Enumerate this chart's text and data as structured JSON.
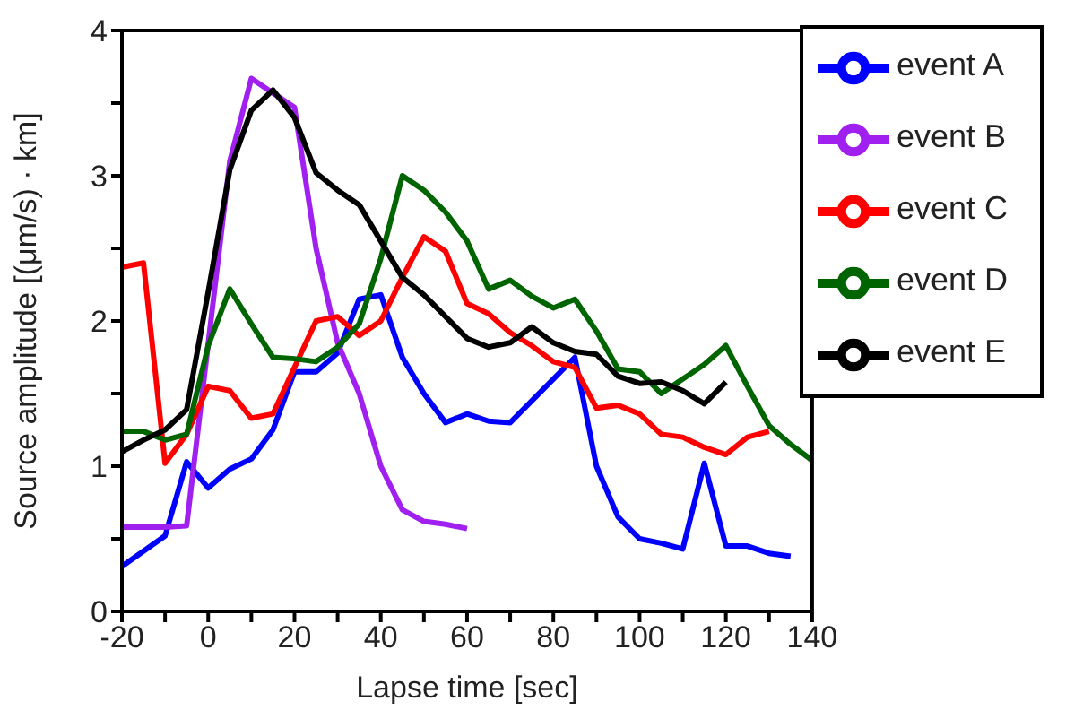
{
  "chart_data": {
    "type": "line",
    "xlabel": "Lapse time [sec]",
    "ylabel": "Source amplitude [(μm/s) · km]",
    "xlim": [
      -20,
      140
    ],
    "ylim": [
      0,
      4
    ],
    "xticks": [
      -20,
      {
        "value": -10,
        "label": null
      },
      0,
      {
        "value": 10,
        "label": null
      },
      20,
      {
        "value": 30,
        "label": null
      },
      40,
      {
        "value": 50,
        "label": null
      },
      60,
      {
        "value": 70,
        "label": null
      },
      80,
      {
        "value": 90,
        "label": null
      },
      100,
      {
        "value": 110,
        "label": null
      },
      120,
      {
        "value": 130,
        "label": null
      },
      140
    ],
    "yticks": [
      0,
      {
        "value": 0.5,
        "label": null
      },
      1,
      {
        "value": 1.5,
        "label": null
      },
      2,
      {
        "value": 2.5,
        "label": null
      },
      3,
      {
        "value": 3.5,
        "label": null
      },
      4
    ],
    "grid": false,
    "legend": "top right",
    "marker": "none",
    "line_style": "solid",
    "series": [
      {
        "name": "event A",
        "color": "#0000ff",
        "x": [
          -20,
          -10,
          -5,
          0,
          5,
          10,
          15,
          20,
          25,
          30,
          35,
          40,
          45,
          50,
          55,
          60,
          65,
          70,
          75,
          80,
          85,
          90,
          95,
          100,
          105,
          110,
          115,
          120,
          125,
          130,
          135
        ],
        "values": [
          0.31,
          0.52,
          1.03,
          0.85,
          0.98,
          1.05,
          1.25,
          1.65,
          1.65,
          1.78,
          2.15,
          2.18,
          1.75,
          1.5,
          1.3,
          1.36,
          1.31,
          1.3,
          1.45,
          1.6,
          1.75,
          1.0,
          0.65,
          0.5,
          0.47,
          0.43,
          1.02,
          0.45,
          0.45,
          0.4,
          0.38
        ]
      },
      {
        "name": "event B",
        "color": "#a020f0",
        "x": [
          -20,
          -15,
          -10,
          -5,
          5,
          10,
          15,
          20,
          25,
          30,
          35,
          40,
          45,
          50,
          55,
          60
        ],
        "values": [
          0.58,
          0.58,
          0.58,
          0.59,
          3.1,
          3.67,
          3.57,
          3.47,
          2.5,
          1.85,
          1.5,
          1.0,
          0.7,
          0.62,
          0.6,
          0.57
        ]
      },
      {
        "name": "event C",
        "color": "#ff0000",
        "x": [
          -20,
          -15,
          -10,
          -5,
          0,
          5,
          10,
          15,
          20,
          25,
          30,
          35,
          40,
          45,
          50,
          55,
          60,
          65,
          70,
          75,
          80,
          85,
          90,
          95,
          100,
          105,
          110,
          115,
          120,
          125,
          130
        ],
        "values": [
          2.37,
          2.4,
          1.02,
          1.22,
          1.55,
          1.52,
          1.33,
          1.36,
          1.68,
          2.0,
          2.03,
          1.9,
          2.0,
          2.3,
          2.58,
          2.48,
          2.12,
          2.05,
          1.92,
          1.83,
          1.72,
          1.68,
          1.4,
          1.42,
          1.36,
          1.22,
          1.2,
          1.13,
          1.08,
          1.2,
          1.24
        ]
      },
      {
        "name": "event D",
        "color": "#006400",
        "x": [
          -20,
          -15,
          -10,
          -5,
          0,
          5,
          10,
          15,
          20,
          25,
          30,
          35,
          40,
          45,
          50,
          55,
          60,
          65,
          70,
          75,
          80,
          85,
          90,
          95,
          100,
          105,
          110,
          115,
          120,
          125,
          130,
          135,
          140
        ],
        "values": [
          1.24,
          1.24,
          1.18,
          1.22,
          1.83,
          2.22,
          1.98,
          1.75,
          1.74,
          1.72,
          1.82,
          1.98,
          2.43,
          3.0,
          2.9,
          2.75,
          2.55,
          2.22,
          2.28,
          2.17,
          2.09,
          2.15,
          1.93,
          1.67,
          1.65,
          1.5,
          1.6,
          1.7,
          1.83,
          1.55,
          1.28,
          1.15,
          1.04
        ]
      },
      {
        "name": "event E",
        "color": "#000000",
        "x": [
          -20,
          -15,
          -10,
          -5,
          0,
          5,
          10,
          15,
          20,
          25,
          30,
          35,
          40,
          45,
          50,
          55,
          60,
          65,
          70,
          75,
          80,
          85,
          90,
          95,
          100,
          105,
          110,
          115,
          120
        ],
        "values": [
          1.1,
          1.18,
          1.25,
          1.39,
          2.2,
          3.04,
          3.45,
          3.59,
          3.4,
          3.02,
          2.9,
          2.8,
          2.55,
          2.3,
          2.18,
          2.03,
          1.88,
          1.82,
          1.85,
          1.96,
          1.85,
          1.79,
          1.77,
          1.62,
          1.57,
          1.58,
          1.52,
          1.43,
          1.58
        ]
      }
    ]
  }
}
